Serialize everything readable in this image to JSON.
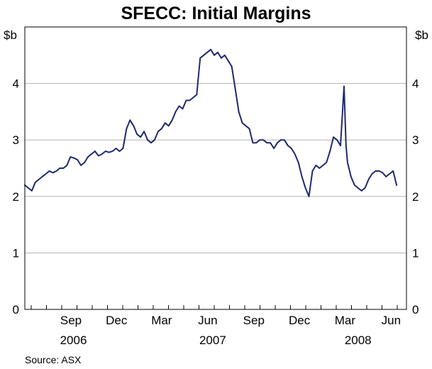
{
  "chart_data": {
    "type": "line",
    "title": "SFECC: Initial Margins",
    "unit_left": "$b",
    "unit_right": "$b",
    "ylim": [
      0,
      5
    ],
    "yticks": [
      "0",
      "1",
      "2",
      "3",
      "4"
    ],
    "grid": true,
    "legend": "none",
    "line_color": "#1f2a6e",
    "x_month_labels": [
      "Sep",
      "Dec",
      "Mar",
      "Jun",
      "Sep",
      "Dec",
      "Mar",
      "Jun"
    ],
    "x_year_labels": [
      "2006",
      "2007",
      "2008"
    ],
    "source": "Source: ASX",
    "series": [
      {
        "x": [
          "2006-06-15",
          "2006-06-22",
          "2006-06-29",
          "2006-07-06",
          "2006-07-13",
          "2006-07-20",
          "2006-07-27",
          "2006-08-03",
          "2006-08-10",
          "2006-08-17",
          "2006-08-24",
          "2006-08-31",
          "2006-09-07",
          "2006-09-14",
          "2006-09-21",
          "2006-09-28",
          "2006-10-05",
          "2006-10-12",
          "2006-10-19",
          "2006-10-26",
          "2006-11-02",
          "2006-11-09",
          "2006-11-16",
          "2006-11-23",
          "2006-11-30",
          "2006-12-07",
          "2006-12-14",
          "2006-12-21",
          "2006-12-28",
          "2007-01-04",
          "2007-01-11",
          "2007-01-18",
          "2007-01-25",
          "2007-02-01",
          "2007-02-08",
          "2007-02-15",
          "2007-02-22",
          "2007-03-01",
          "2007-03-08",
          "2007-03-15",
          "2007-03-22",
          "2007-03-29",
          "2007-04-05",
          "2007-04-12",
          "2007-04-19",
          "2007-04-26",
          "2007-05-03",
          "2007-05-10",
          "2007-05-17",
          "2007-05-24",
          "2007-05-31",
          "2007-06-07",
          "2007-06-14",
          "2007-06-21",
          "2007-06-28",
          "2007-07-05",
          "2007-07-12",
          "2007-07-19",
          "2007-07-26",
          "2007-08-02",
          "2007-08-09",
          "2007-08-16",
          "2007-08-23",
          "2007-08-30",
          "2007-09-06",
          "2007-09-13",
          "2007-09-20",
          "2007-09-27",
          "2007-10-04",
          "2007-10-11",
          "2007-10-18",
          "2007-10-25",
          "2007-11-01",
          "2007-11-08",
          "2007-11-15",
          "2007-11-22",
          "2007-11-29",
          "2007-12-06",
          "2007-12-13",
          "2007-12-20",
          "2007-12-27",
          "2008-01-03",
          "2008-01-10",
          "2008-01-17",
          "2008-01-24",
          "2008-01-31",
          "2008-02-07",
          "2008-02-14",
          "2008-02-21",
          "2008-02-28",
          "2008-03-06",
          "2008-03-13",
          "2008-03-17",
          "2008-03-20",
          "2008-03-27",
          "2008-04-03",
          "2008-04-10",
          "2008-04-17",
          "2008-04-24",
          "2008-05-01",
          "2008-05-08",
          "2008-05-15",
          "2008-05-22",
          "2008-05-29",
          "2008-06-05",
          "2008-06-12",
          "2008-06-19",
          "2008-06-26"
        ],
        "y": [
          2.2,
          2.15,
          2.1,
          2.25,
          2.3,
          2.35,
          2.4,
          2.45,
          2.42,
          2.45,
          2.5,
          2.5,
          2.55,
          2.7,
          2.68,
          2.65,
          2.55,
          2.6,
          2.7,
          2.75,
          2.8,
          2.72,
          2.75,
          2.8,
          2.78,
          2.8,
          2.85,
          2.8,
          2.85,
          3.2,
          3.35,
          3.25,
          3.1,
          3.05,
          3.15,
          3.0,
          2.95,
          3.0,
          3.15,
          3.2,
          3.3,
          3.25,
          3.35,
          3.5,
          3.6,
          3.55,
          3.7,
          3.7,
          3.75,
          3.8,
          4.45,
          4.5,
          4.55,
          4.6,
          4.5,
          4.55,
          4.45,
          4.5,
          4.4,
          4.3,
          3.9,
          3.5,
          3.3,
          3.25,
          3.2,
          2.95,
          2.95,
          3.0,
          3.0,
          2.95,
          2.95,
          2.85,
          2.95,
          3.0,
          3.0,
          2.9,
          2.85,
          2.75,
          2.6,
          2.35,
          2.15,
          2.0,
          2.45,
          2.55,
          2.5,
          2.55,
          2.6,
          2.8,
          3.05,
          3.0,
          2.9,
          3.95,
          2.9,
          2.6,
          2.35,
          2.2,
          2.15,
          2.1,
          2.15,
          2.3,
          2.4,
          2.45,
          2.45,
          2.42,
          2.35,
          2.4,
          2.45,
          2.2
        ]
      }
    ]
  }
}
